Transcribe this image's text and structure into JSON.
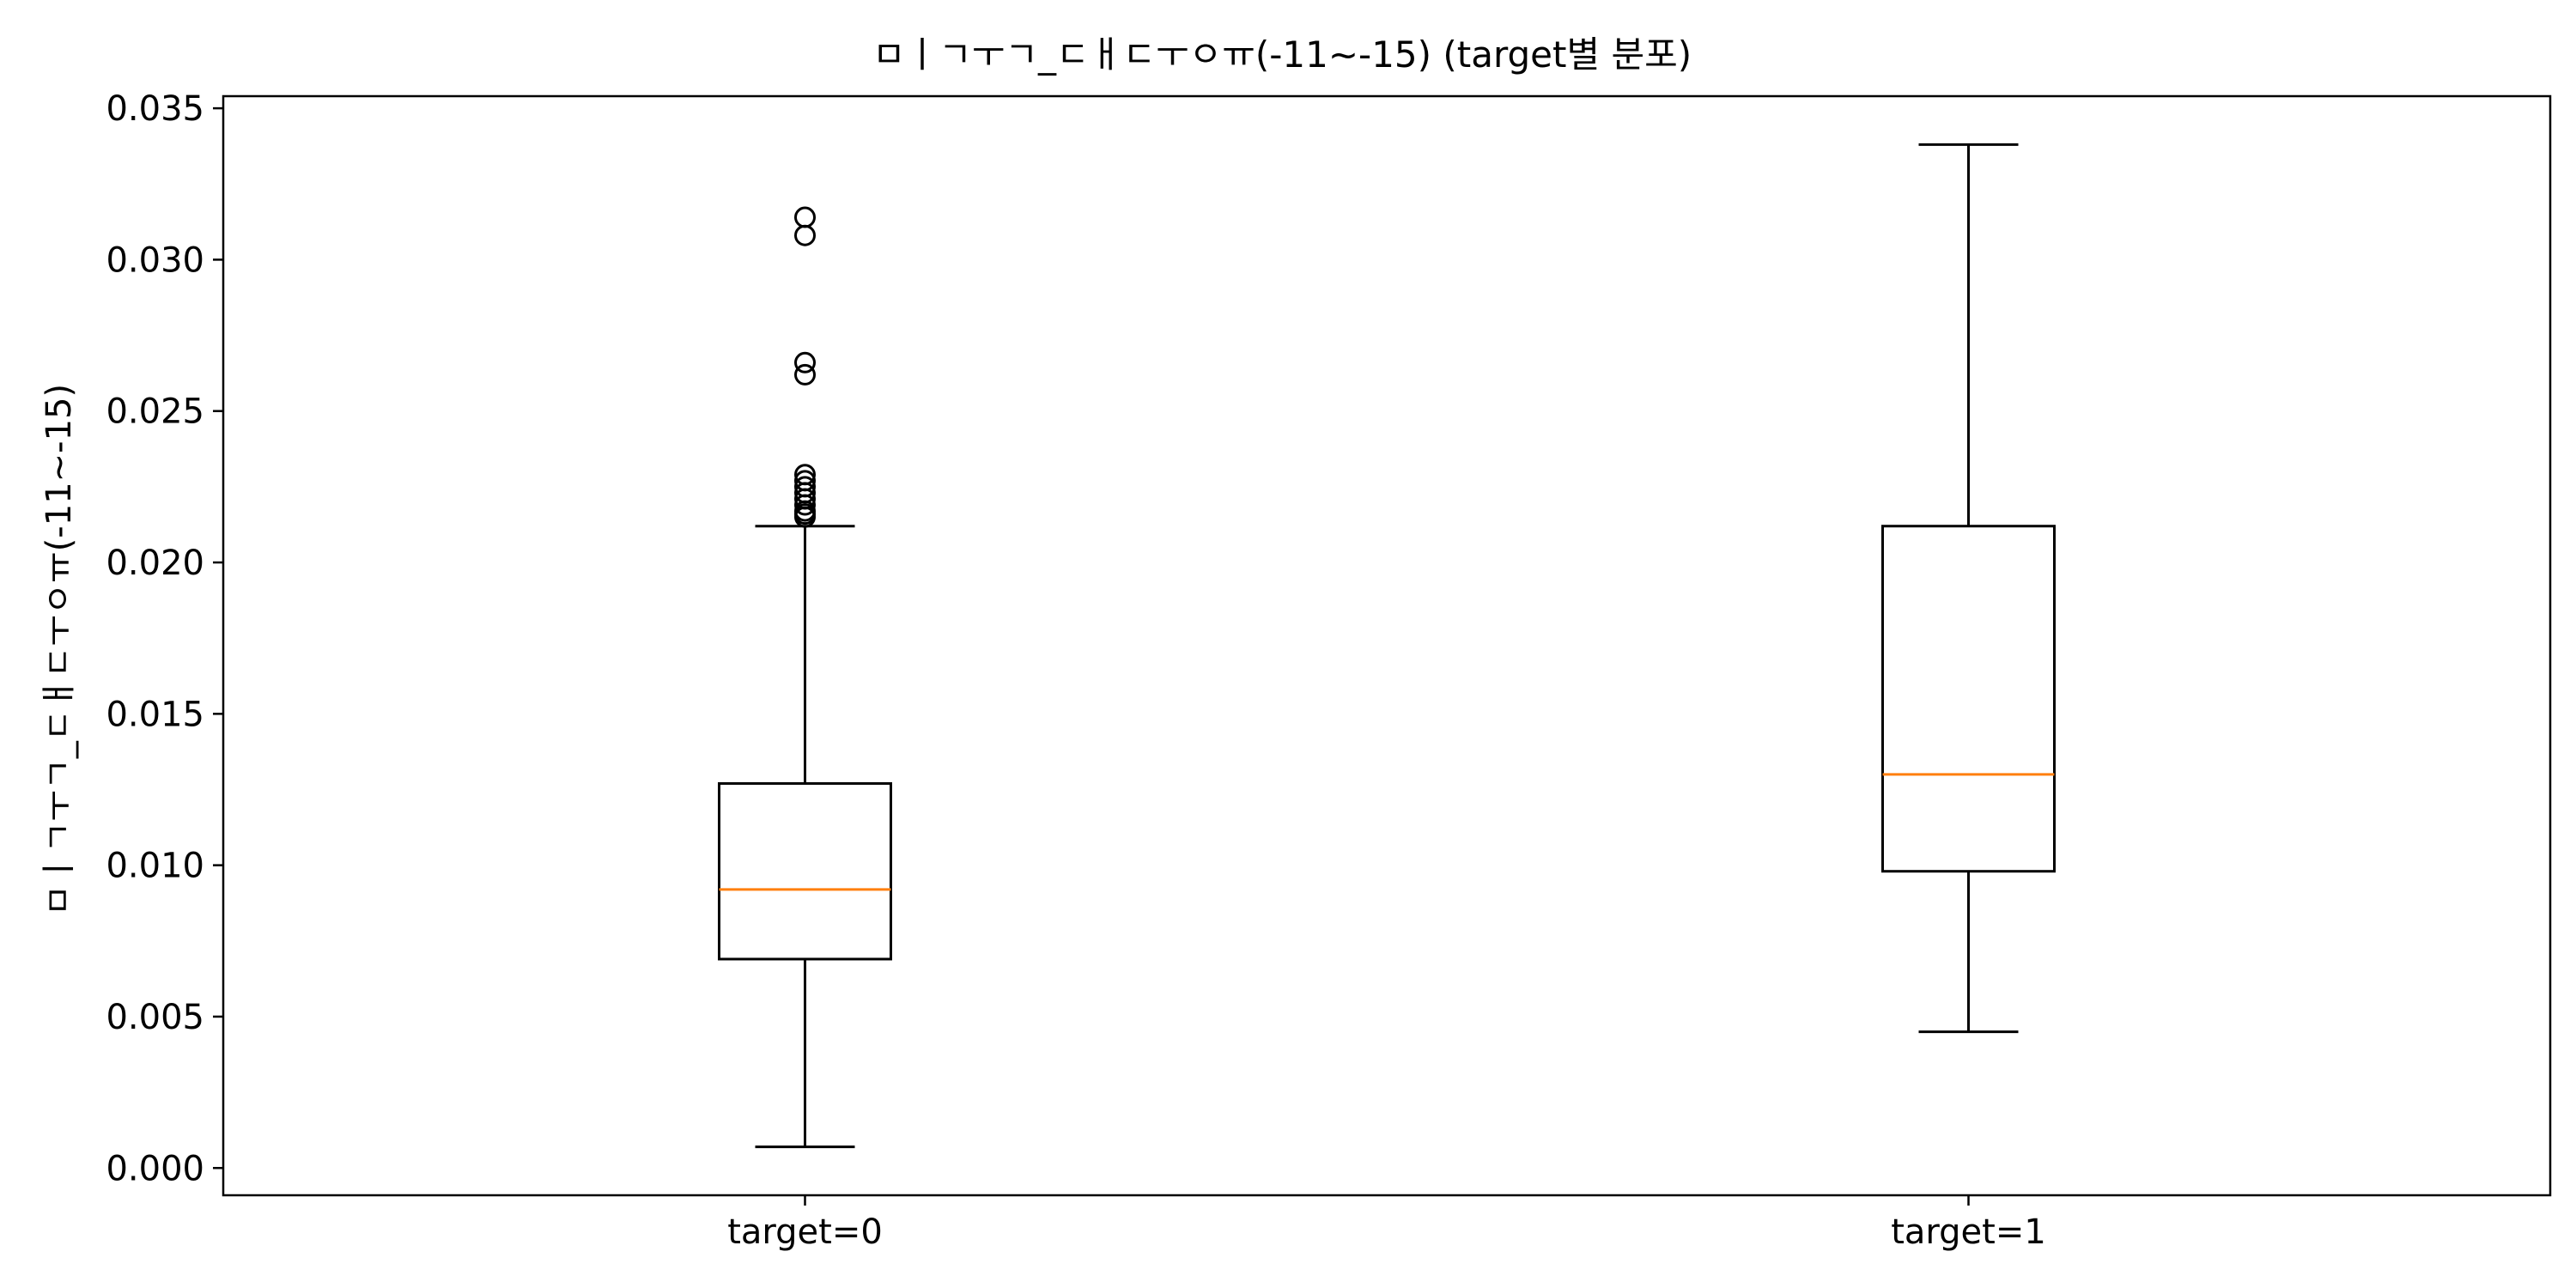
{
  "chart_data": {
    "type": "boxplot",
    "title": "ㅁㅣㄱㅜㄱ_ㄷㅐㄷㅜㅇㅠ(-11~-15) (target별 분포)",
    "xlabel": "",
    "ylabel": "ㅁㅣㄱㅜㄱ_ㄷㅐㄷㅜㅇㅠ(-11~-15)",
    "ylim": [
      -0.0009,
      0.0354
    ],
    "yticks": [
      0.0,
      0.005,
      0.01,
      0.015,
      0.02,
      0.025,
      0.03,
      0.035
    ],
    "ytick_labels": [
      "0.000",
      "0.005",
      "0.010",
      "0.015",
      "0.020",
      "0.025",
      "0.030",
      "0.035"
    ],
    "categories": [
      "target=0",
      "target=1"
    ],
    "boxes": [
      {
        "category": "target=0",
        "whisker_low": 0.0007,
        "q1": 0.0069,
        "median": 0.0092,
        "q3": 0.0127,
        "whisker_high": 0.0212,
        "outliers": [
          0.0215,
          0.0216,
          0.0217,
          0.0219,
          0.0221,
          0.0223,
          0.0225,
          0.0227,
          0.0229,
          0.0262,
          0.0266,
          0.0308,
          0.0314
        ]
      },
      {
        "category": "target=1",
        "whisker_low": 0.0045,
        "q1": 0.0098,
        "median": 0.013,
        "q3": 0.0212,
        "whisker_high": 0.0338,
        "outliers": []
      }
    ],
    "colors": {
      "box": "#000000",
      "median": "#ff7f0e",
      "outlier": "#000000"
    },
    "grid": false,
    "legend": "none"
  }
}
